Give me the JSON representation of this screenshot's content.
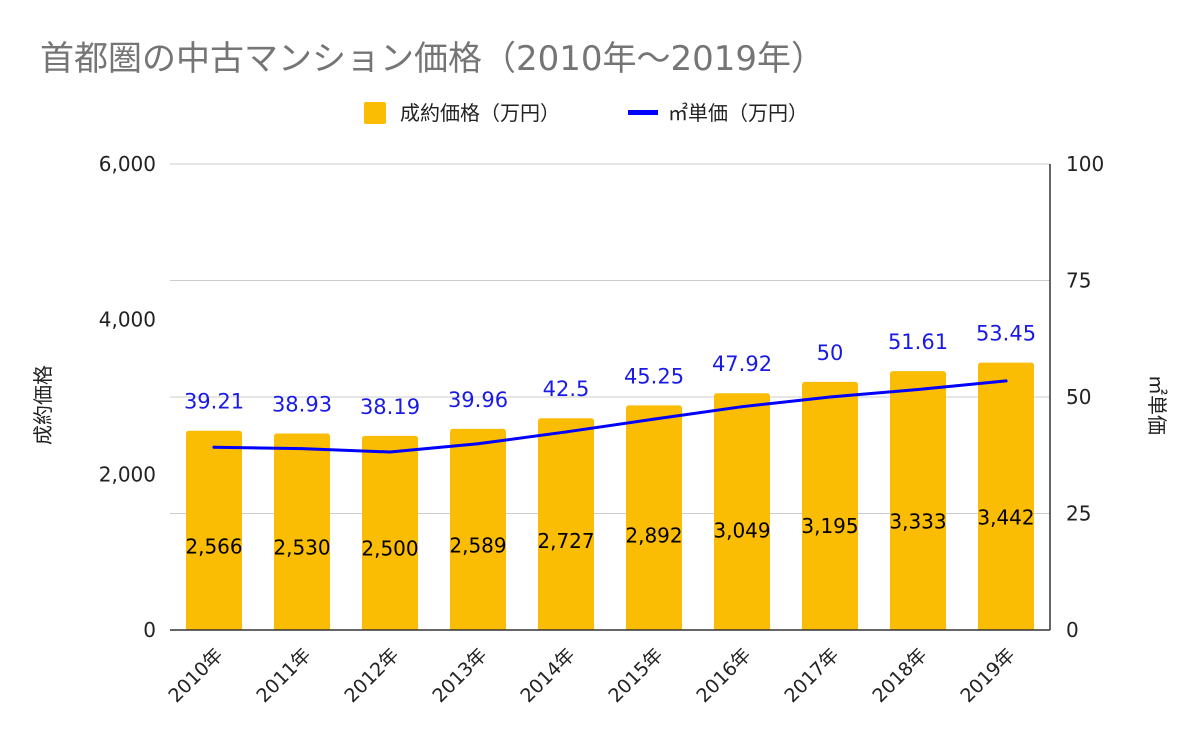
{
  "chart_data": {
    "type": "bar",
    "title": "首都圏の中古マンション価格（2010年〜2019年）",
    "categories": [
      "2010年",
      "2011年",
      "2012年",
      "2013年",
      "2014年",
      "2015年",
      "2016年",
      "2017年",
      "2018年",
      "2019年"
    ],
    "series": [
      {
        "name": "成約価格（万円）",
        "type": "bar",
        "axis": "left",
        "values": [
          2566,
          2530,
          2500,
          2589,
          2727,
          2892,
          3049,
          3195,
          3333,
          3442
        ],
        "labels": [
          "2,566",
          "2,530",
          "2,500",
          "2,589",
          "2,727",
          "2,892",
          "3,049",
          "3,195",
          "3,333",
          "3,442"
        ]
      },
      {
        "name": "㎡単価（万円）",
        "type": "line",
        "axis": "right",
        "values": [
          39.21,
          38.93,
          38.19,
          39.96,
          42.5,
          45.25,
          47.92,
          50,
          51.61,
          53.45
        ],
        "labels": [
          "39.21",
          "38.93",
          "38.19",
          "39.96",
          "42.5",
          "45.25",
          "47.92",
          "50",
          "51.61",
          "53.45"
        ]
      }
    ],
    "left_axis": {
      "title": "成約価格",
      "range": [
        0,
        6000
      ],
      "ticks": [
        0,
        2000,
        4000,
        6000
      ],
      "tick_labels": [
        "0",
        "2,000",
        "4,000",
        "6,000"
      ]
    },
    "right_axis": {
      "title": "㎡単価",
      "range": [
        0,
        100
      ],
      "ticks": [
        0,
        25,
        50,
        75,
        100
      ],
      "tick_labels": [
        "0",
        "25",
        "50",
        "75",
        "100"
      ]
    },
    "legend_position": "top",
    "grid": true,
    "colors": {
      "bar": "#FBBC04",
      "line": "#0000FF",
      "line_label": "#1A1AE6",
      "title": "#757575",
      "grid": "#CCCCCC"
    }
  }
}
